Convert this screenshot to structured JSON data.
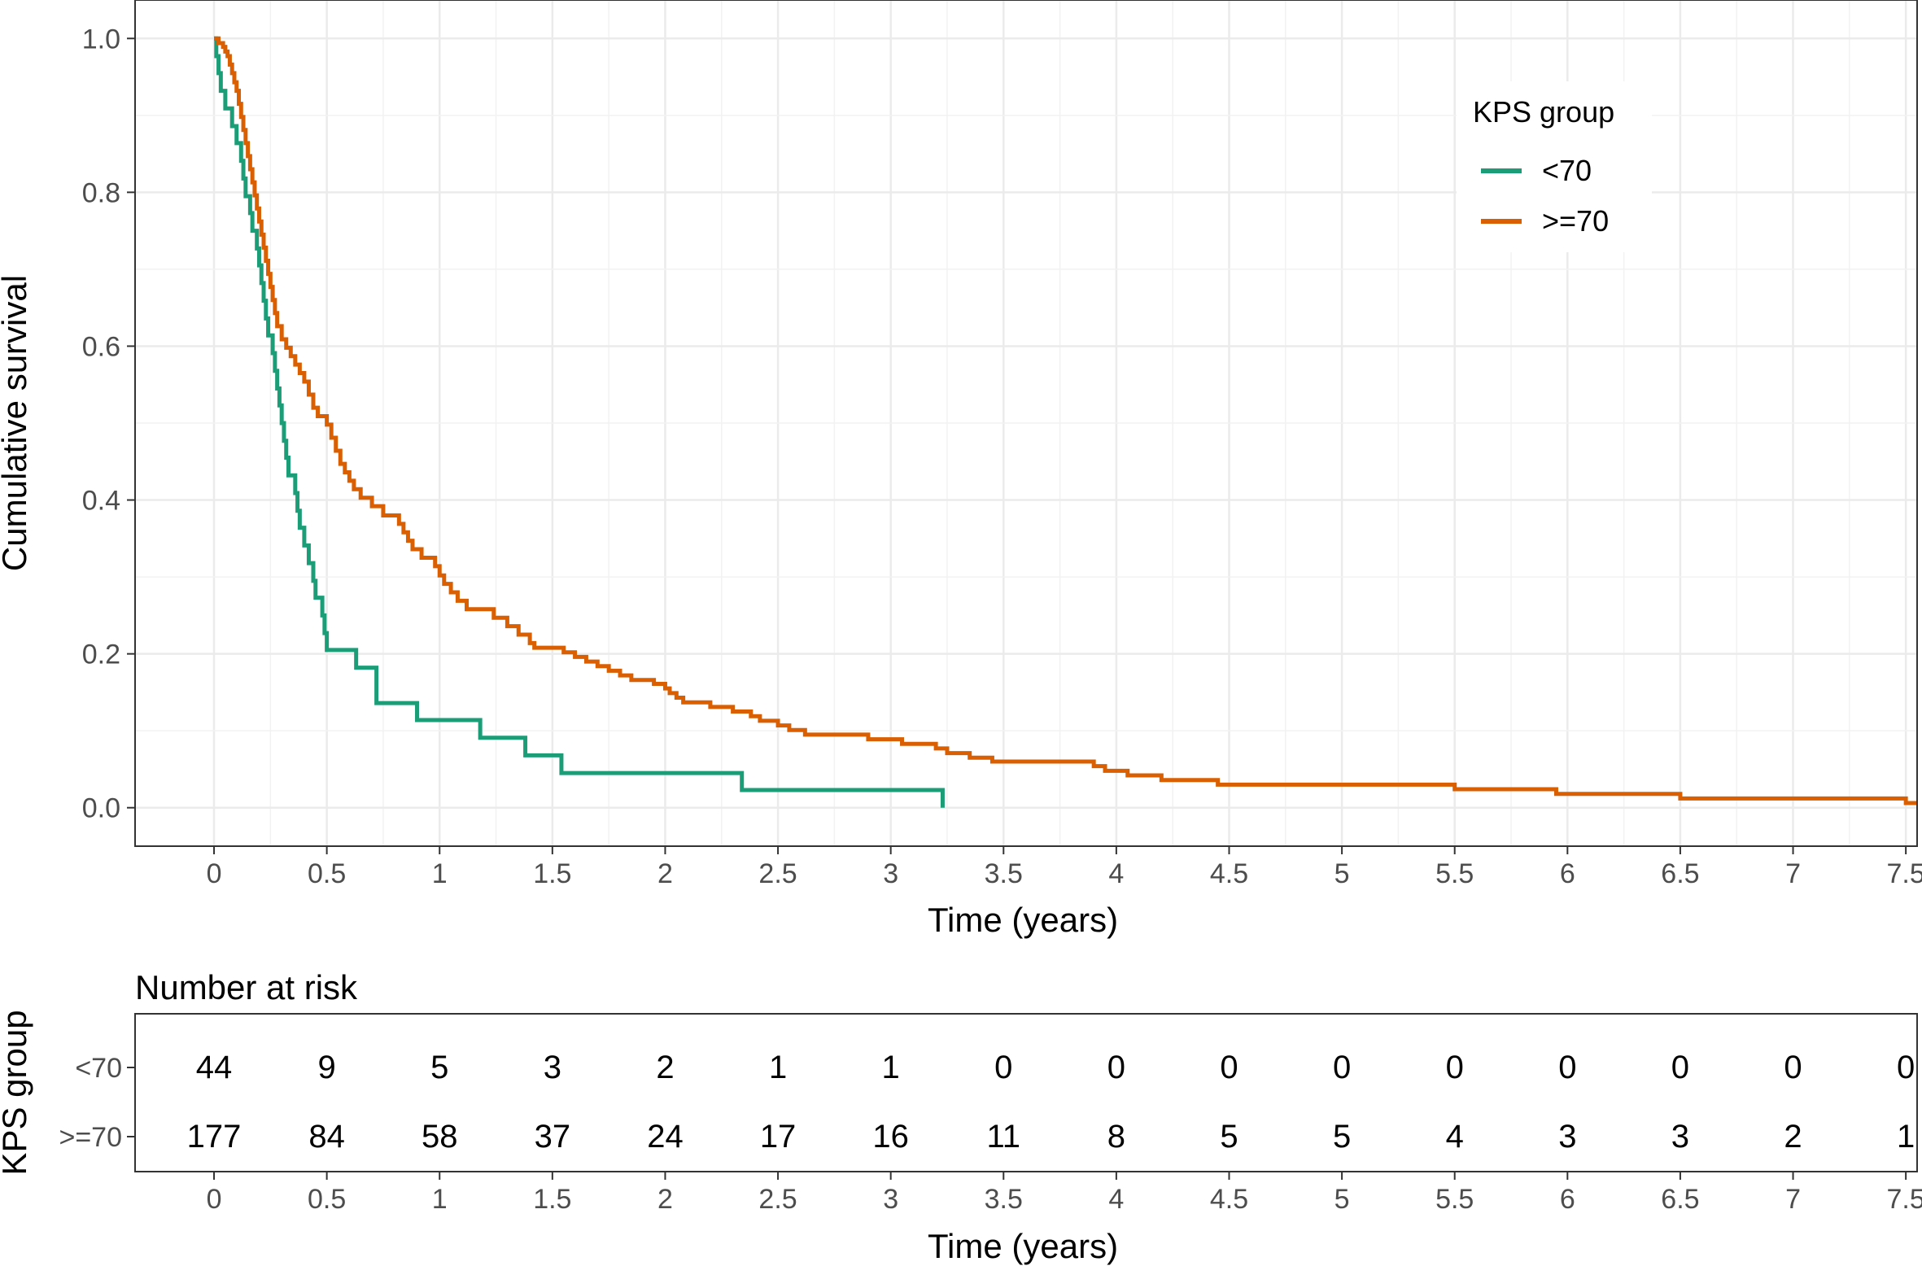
{
  "chart_data": [
    {
      "type": "line",
      "subtype": "kaplan-meier step",
      "xlabel": "Time (years)",
      "ylabel": "Cumulative survival",
      "xlim": [
        -0.35,
        7.55
      ],
      "ylim": [
        -0.05,
        1.05
      ],
      "x_ticks": [
        0,
        0.5,
        1,
        1.5,
        2,
        2.5,
        3,
        3.5,
        4,
        4.5,
        5,
        5.5,
        6,
        6.5,
        7,
        7.5
      ],
      "x_tick_labels": [
        "0",
        "0.5",
        "1",
        "1.5",
        "2",
        "2.5",
        "3",
        "3.5",
        "4",
        "4.5",
        "5",
        "5.5",
        "6",
        "6.5",
        "7",
        "7.5"
      ],
      "y_ticks": [
        0,
        0.2,
        0.4,
        0.6,
        0.8,
        1.0
      ],
      "y_tick_labels": [
        "0.0",
        "0.2",
        "0.4",
        "0.6",
        "0.8",
        "1.0"
      ],
      "grid": true,
      "legend": {
        "title": "KPS group",
        "position": "top-right",
        "entries": [
          {
            "label": "<70",
            "color": "#1b9e77"
          },
          {
            "label": ">=70",
            "color": "#d95f02"
          }
        ]
      },
      "series": [
        {
          "name": "<70",
          "color": "#1b9e77",
          "steps": [
            [
              0,
              1.0
            ],
            [
              0.01,
              0.977
            ],
            [
              0.02,
              0.955
            ],
            [
              0.03,
              0.932
            ],
            [
              0.05,
              0.909
            ],
            [
              0.08,
              0.886
            ],
            [
              0.1,
              0.864
            ],
            [
              0.12,
              0.841
            ],
            [
              0.13,
              0.818
            ],
            [
              0.14,
              0.795
            ],
            [
              0.16,
              0.773
            ],
            [
              0.17,
              0.75
            ],
            [
              0.19,
              0.727
            ],
            [
              0.2,
              0.705
            ],
            [
              0.21,
              0.682
            ],
            [
              0.22,
              0.659
            ],
            [
              0.23,
              0.636
            ],
            [
              0.24,
              0.614
            ],
            [
              0.26,
              0.591
            ],
            [
              0.27,
              0.568
            ],
            [
              0.28,
              0.545
            ],
            [
              0.29,
              0.523
            ],
            [
              0.3,
              0.5
            ],
            [
              0.31,
              0.477
            ],
            [
              0.32,
              0.455
            ],
            [
              0.33,
              0.432
            ],
            [
              0.36,
              0.409
            ],
            [
              0.37,
              0.386
            ],
            [
              0.38,
              0.364
            ],
            [
              0.4,
              0.341
            ],
            [
              0.42,
              0.318
            ],
            [
              0.44,
              0.295
            ],
            [
              0.45,
              0.273
            ],
            [
              0.48,
              0.25
            ],
            [
              0.49,
              0.227
            ],
            [
              0.5,
              0.205
            ],
            [
              0.63,
              0.182
            ],
            [
              0.72,
              0.136
            ],
            [
              0.9,
              0.114
            ],
            [
              1.18,
              0.091
            ],
            [
              1.38,
              0.068
            ],
            [
              1.54,
              0.045
            ],
            [
              2.34,
              0.023
            ],
            [
              3.23,
              0.0
            ]
          ],
          "end": 3.23
        },
        {
          "name": ">=70",
          "color": "#d95f02",
          "steps": [
            [
              0,
              1.0
            ],
            [
              0.02,
              0.994
            ],
            [
              0.04,
              0.989
            ],
            [
              0.05,
              0.983
            ],
            [
              0.06,
              0.977
            ],
            [
              0.07,
              0.966
            ],
            [
              0.08,
              0.955
            ],
            [
              0.09,
              0.943
            ],
            [
              0.1,
              0.932
            ],
            [
              0.11,
              0.915
            ],
            [
              0.12,
              0.898
            ],
            [
              0.13,
              0.881
            ],
            [
              0.14,
              0.864
            ],
            [
              0.15,
              0.847
            ],
            [
              0.16,
              0.83
            ],
            [
              0.17,
              0.813
            ],
            [
              0.18,
              0.796
            ],
            [
              0.19,
              0.779
            ],
            [
              0.2,
              0.762
            ],
            [
              0.21,
              0.745
            ],
            [
              0.22,
              0.728
            ],
            [
              0.23,
              0.711
            ],
            [
              0.24,
              0.694
            ],
            [
              0.25,
              0.677
            ],
            [
              0.26,
              0.66
            ],
            [
              0.27,
              0.643
            ],
            [
              0.28,
              0.626
            ],
            [
              0.3,
              0.609
            ],
            [
              0.32,
              0.598
            ],
            [
              0.34,
              0.587
            ],
            [
              0.36,
              0.576
            ],
            [
              0.38,
              0.565
            ],
            [
              0.4,
              0.554
            ],
            [
              0.42,
              0.537
            ],
            [
              0.44,
              0.52
            ],
            [
              0.46,
              0.509
            ],
            [
              0.5,
              0.498
            ],
            [
              0.52,
              0.481
            ],
            [
              0.54,
              0.464
            ],
            [
              0.56,
              0.447
            ],
            [
              0.58,
              0.436
            ],
            [
              0.6,
              0.425
            ],
            [
              0.62,
              0.414
            ],
            [
              0.65,
              0.403
            ],
            [
              0.7,
              0.392
            ],
            [
              0.75,
              0.38
            ],
            [
              0.82,
              0.369
            ],
            [
              0.84,
              0.358
            ],
            [
              0.86,
              0.347
            ],
            [
              0.88,
              0.336
            ],
            [
              0.92,
              0.325
            ],
            [
              0.98,
              0.314
            ],
            [
              1.0,
              0.302
            ],
            [
              1.02,
              0.291
            ],
            [
              1.05,
              0.28
            ],
            [
              1.08,
              0.269
            ],
            [
              1.12,
              0.258
            ],
            [
              1.2,
              0.258
            ],
            [
              1.24,
              0.247
            ],
            [
              1.3,
              0.236
            ],
            [
              1.35,
              0.225
            ],
            [
              1.4,
              0.214
            ],
            [
              1.42,
              0.208
            ],
            [
              1.55,
              0.202
            ],
            [
              1.6,
              0.196
            ],
            [
              1.65,
              0.19
            ],
            [
              1.7,
              0.184
            ],
            [
              1.75,
              0.178
            ],
            [
              1.8,
              0.172
            ],
            [
              1.85,
              0.166
            ],
            [
              1.95,
              0.161
            ],
            [
              2.0,
              0.155
            ],
            [
              2.02,
              0.149
            ],
            [
              2.05,
              0.143
            ],
            [
              2.08,
              0.137
            ],
            [
              2.2,
              0.131
            ],
            [
              2.3,
              0.125
            ],
            [
              2.38,
              0.119
            ],
            [
              2.42,
              0.113
            ],
            [
              2.5,
              0.107
            ],
            [
              2.55,
              0.101
            ],
            [
              2.62,
              0.095
            ],
            [
              2.9,
              0.089
            ],
            [
              3.05,
              0.083
            ],
            [
              3.2,
              0.077
            ],
            [
              3.25,
              0.071
            ],
            [
              3.35,
              0.065
            ],
            [
              3.45,
              0.06
            ],
            [
              3.9,
              0.054
            ],
            [
              3.95,
              0.048
            ],
            [
              4.05,
              0.042
            ],
            [
              4.2,
              0.036
            ],
            [
              4.45,
              0.03
            ],
            [
              5.5,
              0.024
            ],
            [
              5.95,
              0.018
            ],
            [
              6.5,
              0.012
            ],
            [
              7.5,
              0.006
            ]
          ],
          "end": 7.55
        }
      ]
    },
    {
      "type": "table",
      "title": "Number at risk",
      "xlabel": "Time (years)",
      "ylabel": "KPS group",
      "times": [
        0,
        0.5,
        1,
        1.5,
        2,
        2.5,
        3,
        3.5,
        4,
        4.5,
        5,
        5.5,
        6,
        6.5,
        7,
        7.5
      ],
      "time_labels": [
        "0",
        "0.5",
        "1",
        "1.5",
        "2",
        "2.5",
        "3",
        "3.5",
        "4",
        "4.5",
        "5",
        "5.5",
        "6",
        "6.5",
        "7",
        "7.5"
      ],
      "rows": [
        {
          "group": "<70",
          "values": [
            "44",
            "9",
            "5",
            "3",
            "2",
            "1",
            "1",
            "0",
            "0",
            "0",
            "0",
            "0",
            "0",
            "0",
            "0",
            "0"
          ]
        },
        {
          "group": ">=70",
          "values": [
            "177",
            "84",
            "58",
            "37",
            "24",
            "17",
            "16",
            "11",
            "8",
            "5",
            "5",
            "4",
            "3",
            "3",
            "2",
            "1"
          ]
        }
      ]
    }
  ]
}
